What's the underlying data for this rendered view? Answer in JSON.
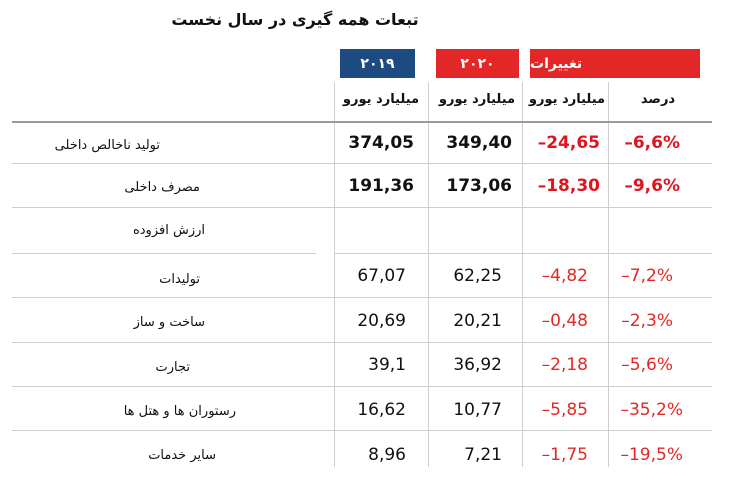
{
  "title": "تبعات همه گیری در سال نخست",
  "headers": {
    "y2019": "۲۰۱۹",
    "y2020": "۲۰۲۰",
    "changes": "تغییرات"
  },
  "units": {
    "col2019": "میلیارد یورو",
    "col2020": "میلیارد یورو",
    "col_change_abs": "میلیارد یورو",
    "col_change_pct": "درصد"
  },
  "rows": [
    {
      "label": "تولید ناخالص داخلی",
      "v2019": "374,05",
      "v2020": "349,40",
      "change": "–24,65",
      "pct": "–6,6%"
    },
    {
      "label": "مصرف داخلی",
      "v2019": "191,36",
      "v2020": "173,06",
      "change": "–18,30",
      "pct": "–9,6%"
    },
    {
      "label": "ارزش افزوده",
      "v2019": "",
      "v2020": "",
      "change": "",
      "pct": ""
    },
    {
      "label": "تولیدات",
      "v2019": "67,07",
      "v2020": "62,25",
      "change": "–4,82",
      "pct": "–7,2%"
    },
    {
      "label": "ساخت و ساز",
      "v2019": "20,69",
      "v2020": "20,21",
      "change": "–0,48",
      "pct": "–2,3%"
    },
    {
      "label": "تجارت",
      "v2019": "39,1",
      "v2020": "36,92",
      "change": "–2,18",
      "pct": "–5,6%"
    },
    {
      "label": "رستوران ها و هتل ها",
      "v2019": "16,62",
      "v2020": "10,77",
      "change": "–5,85",
      "pct": "–35,2%"
    },
    {
      "label": "سایر خدمات",
      "v2019": "8,96",
      "v2020": "7,21",
      "change": "–1,75",
      "pct": "–19,5%"
    }
  ],
  "colors": {
    "blue": "#1d4a80",
    "red": "#e32727"
  }
}
